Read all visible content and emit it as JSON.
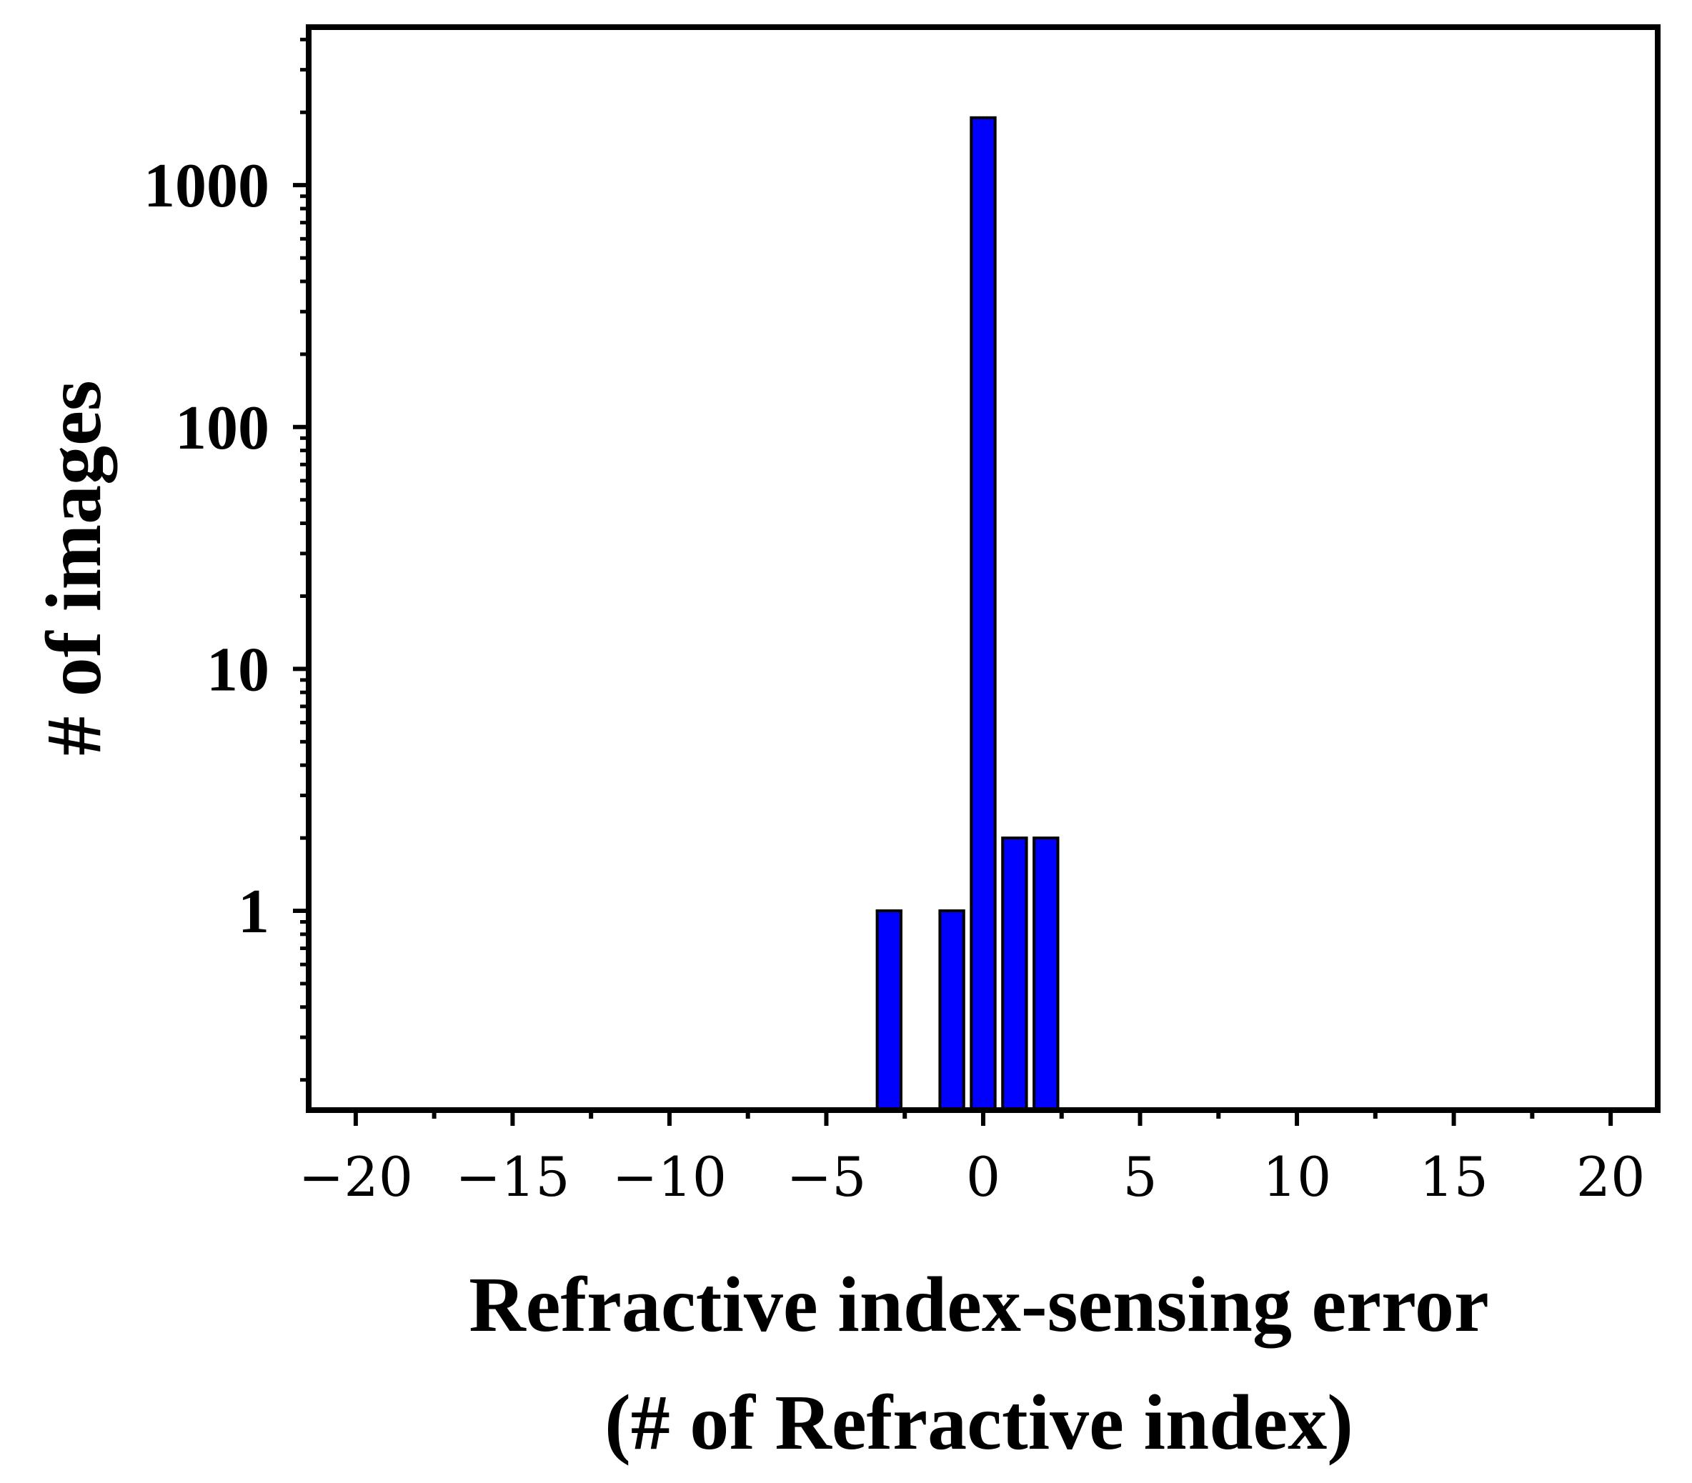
{
  "chart_data": {
    "type": "bar",
    "x": [
      -3,
      -1,
      0,
      1,
      2
    ],
    "values": [
      1,
      1,
      1900,
      2,
      2
    ],
    "xlabel_line1": "Refractive index-sensing error",
    "xlabel_line2": "(# of Refractive index)",
    "ylabel": "# of images",
    "xlim": [
      -21.5,
      21.5
    ],
    "ylim": [
      0.15,
      4500
    ],
    "yscale": "log",
    "xticks": [
      -20,
      -15,
      -10,
      -5,
      0,
      5,
      10,
      15,
      20
    ],
    "xtick_labels": [
      "−20",
      "−15",
      "−10",
      "−5",
      "0",
      "5",
      "10",
      "15",
      "20"
    ],
    "yticks": [
      1,
      10,
      100,
      1000
    ],
    "ytick_labels": [
      "1",
      "10",
      "100",
      "1000"
    ],
    "bar_color": "#0000ff",
    "bar_edge_color": "#000000",
    "grid": false,
    "legend": "none"
  }
}
